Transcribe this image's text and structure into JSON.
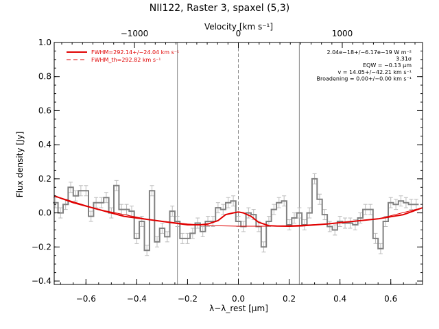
{
  "chart_data": {
    "type": "line",
    "title": "NII122, Raster 3, spaxel (5,3)",
    "xlabel": "λ−λ_rest [μm]",
    "ylabel": "Flux density [Jy]",
    "top_axis_label": "Velocity [km s⁻¹]",
    "xlim": [
      -0.725,
      0.725
    ],
    "ylim": [
      -0.42,
      1.0
    ],
    "xticks": [
      -0.6,
      -0.4,
      -0.2,
      0.0,
      0.2,
      0.4,
      0.6
    ],
    "xtick_labels": [
      "−0.6",
      "−0.4",
      "−0.2",
      "0.0",
      "0.2",
      "0.4",
      "0.6"
    ],
    "yticks": [
      -0.4,
      -0.2,
      0.0,
      0.2,
      0.4,
      0.6,
      0.8,
      1.0
    ],
    "ytick_labels": [
      "−0.4",
      "−0.2",
      "0.0",
      "0.2",
      "0.4",
      "0.6",
      "0.8",
      "1.0"
    ],
    "top_ticks": [
      -1000,
      0,
      1000
    ],
    "top_tick_labels": [
      "−1000",
      "0",
      "1000"
    ],
    "vertical_lines": [
      -0.24,
      0.0,
      0.24
    ],
    "legend": [
      {
        "label": "FWHM=292.14+/−24.04 km s⁻¹",
        "style": "solid",
        "color": "#e00000"
      },
      {
        "label": "FWHM_th=292.82 km s⁻¹",
        "style": "dashed",
        "color": "#e00000"
      }
    ],
    "annotations": [
      "2.04e−18+/−6.17e−19 W m⁻²",
      "3.31σ",
      "EQW = −0.13 μm",
      "v = 14.05+/−42.21 km s⁻¹",
      "Broadening = 0.00+/−0.00 km s⁻¹"
    ],
    "series": [
      {
        "style": "histogram",
        "color": "#808080",
        "x": [
          -0.72,
          -0.7,
          -0.68,
          -0.66,
          -0.64,
          -0.62,
          -0.6,
          -0.58,
          -0.56,
          -0.54,
          -0.52,
          -0.5,
          -0.48,
          -0.46,
          -0.44,
          -0.42,
          -0.4,
          -0.38,
          -0.36,
          -0.34,
          -0.32,
          -0.3,
          -0.28,
          -0.26,
          -0.24,
          -0.22,
          -0.2,
          -0.18,
          -0.16,
          -0.14,
          -0.12,
          -0.1,
          -0.08,
          -0.06,
          -0.04,
          -0.02,
          0.0,
          0.02,
          0.04,
          0.06,
          0.08,
          0.1,
          0.12,
          0.14,
          0.16,
          0.18,
          0.2,
          0.22,
          0.24,
          0.26,
          0.28,
          0.3,
          0.32,
          0.34,
          0.36,
          0.38,
          0.4,
          0.42,
          0.44,
          0.46,
          0.48,
          0.5,
          0.52,
          0.54,
          0.56,
          0.58,
          0.6,
          0.62,
          0.64,
          0.66,
          0.68,
          0.7
        ],
        "y": [
          0.06,
          0.0,
          0.05,
          0.15,
          0.1,
          0.13,
          0.13,
          -0.02,
          0.06,
          0.06,
          0.09,
          0.0,
          0.16,
          0.02,
          0.02,
          0.01,
          -0.15,
          -0.05,
          -0.22,
          0.13,
          -0.17,
          -0.09,
          -0.14,
          0.01,
          -0.05,
          -0.15,
          -0.15,
          -0.12,
          -0.06,
          -0.11,
          -0.05,
          -0.05,
          0.03,
          0.02,
          0.06,
          0.07,
          -0.05,
          -0.08,
          0.0,
          -0.01,
          -0.08,
          -0.2,
          -0.05,
          0.02,
          0.06,
          0.07,
          -0.07,
          -0.03,
          0.0,
          -0.07,
          0.0,
          0.2,
          0.08,
          -0.01,
          -0.08,
          -0.1,
          -0.05,
          -0.06,
          -0.06,
          -0.07,
          -0.03,
          0.02,
          0.02,
          -0.15,
          -0.21,
          -0.05,
          0.06,
          0.05,
          0.07,
          0.06,
          0.05,
          0.05
        ],
        "err": 0.03
      },
      {
        "style": "line",
        "color": "#e00000",
        "x": [
          -0.725,
          -0.65,
          -0.55,
          -0.45,
          -0.35,
          -0.25,
          -0.2,
          -0.15,
          -0.12,
          -0.08,
          -0.05,
          -0.02,
          0.0,
          0.02,
          0.05,
          0.08,
          0.12,
          0.15,
          0.2,
          0.25,
          0.35,
          0.45,
          0.55,
          0.65,
          0.725
        ],
        "y": [
          0.1,
          0.06,
          0.02,
          -0.02,
          -0.04,
          -0.06,
          -0.07,
          -0.07,
          -0.065,
          -0.045,
          -0.01,
          0.0,
          0.005,
          0.0,
          -0.02,
          -0.055,
          -0.075,
          -0.077,
          -0.078,
          -0.076,
          -0.065,
          -0.05,
          -0.035,
          -0.01,
          0.03
        ]
      },
      {
        "style": "line",
        "color": "#e00000",
        "x": [
          -0.725,
          -0.55,
          -0.35,
          -0.2,
          -0.1,
          0.0,
          0.1,
          0.2,
          0.35,
          0.55,
          0.725
        ],
        "y": [
          0.1,
          0.02,
          -0.04,
          -0.065,
          -0.075,
          -0.078,
          -0.078,
          -0.075,
          -0.065,
          -0.035,
          0.03
        ],
        "dash": true
      }
    ]
  }
}
